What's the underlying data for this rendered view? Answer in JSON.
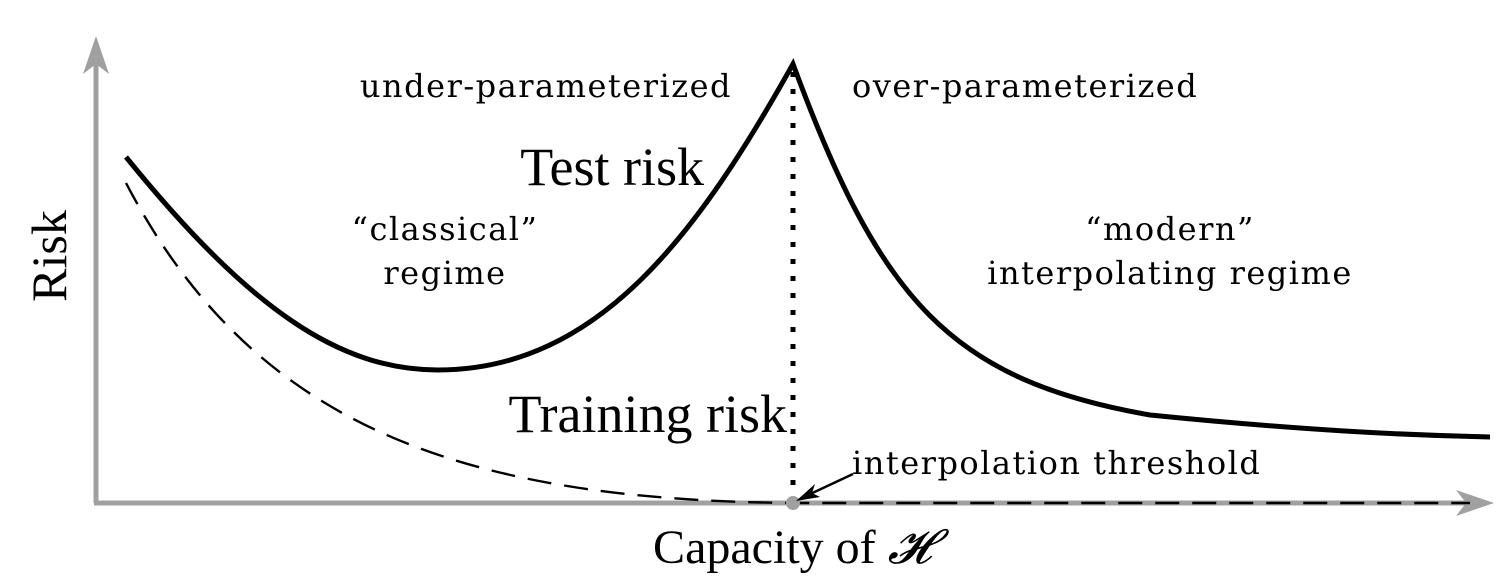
{
  "axes": {
    "ylabel": "Risk",
    "xlabel_prefix": "Capacity of ",
    "xlabel_symbol": "𝓗"
  },
  "regions": {
    "left_title": "under-parameterized",
    "right_title": "over-parameterized"
  },
  "curves": {
    "test_label": "Test risk",
    "training_label": "Training risk"
  },
  "regimes": {
    "classical_line1": "“classical”",
    "classical_line2": "regime",
    "modern_line1": "“modern”",
    "modern_line2": "interpolating regime"
  },
  "threshold": {
    "label": "interpolation threshold"
  },
  "colors": {
    "axis": "#a0a0a0",
    "curve": "#000000",
    "background": "#ffffff"
  }
}
